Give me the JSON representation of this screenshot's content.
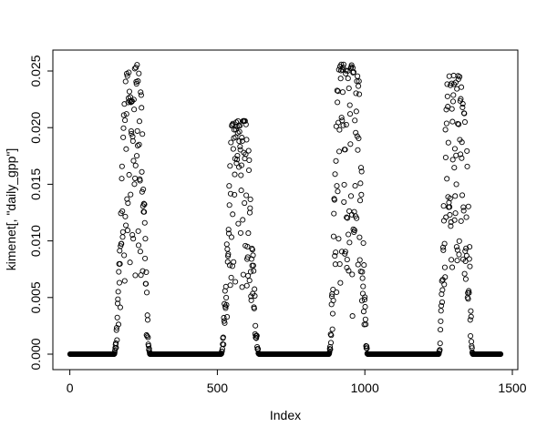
{
  "figure": {
    "background": "#ffffff",
    "frame_color": "#000000",
    "text_color": "#000000"
  },
  "chart_data": {
    "type": "scatter",
    "title": "",
    "xlabel": "Index",
    "ylabel": "kimenet[, \"daily_gpp\"]",
    "x_ticks": [
      0,
      500,
      1000,
      1500
    ],
    "x_tick_labels": [
      "0",
      "500",
      "1000",
      "1500"
    ],
    "y_ticks": [
      0,
      0.005,
      0.01,
      0.015,
      0.02,
      0.025
    ],
    "y_tick_labels": [
      "0.000",
      "0.005",
      "0.010",
      "0.015",
      "0.020",
      "0.025"
    ],
    "xlim": [
      -57.4,
      1518.4
    ],
    "ylim": [
      -0.001367,
      0.026849
    ],
    "grid": false,
    "legend": "none",
    "marker": "open-circle",
    "marker_color": "#000000",
    "point_radius": 2.6,
    "n_points": 1460,
    "x_start": 1,
    "series_description": "Daily modelled GPP (kimenet[, \"daily_gpp\"]) plotted against day index over 4 years; value is exactly 0 outside the growing seasons, forming solid black bands, with four noisy seasonal peaks.",
    "seasons": [
      {
        "start": 150,
        "peak_lo": 195,
        "peak_hi": 235,
        "end": 272,
        "peak_value": 0.0256
      },
      {
        "start": 512,
        "peak_lo": 552,
        "peak_hi": 596,
        "end": 642,
        "peak_value": 0.0206
      },
      {
        "start": 878,
        "peak_lo": 912,
        "peak_hi": 975,
        "end": 1010,
        "peak_value": 0.0256
      },
      {
        "start": 1250,
        "peak_lo": 1282,
        "peak_hi": 1340,
        "end": 1366,
        "peak_value": 0.0246
      }
    ],
    "scatter_model": {
      "spread_exponent": 2.0,
      "spread_depth": 0.72,
      "dip_probability": 0.12,
      "dip_low": 0.35,
      "dip_range": 0.4,
      "seed": 1234567
    }
  }
}
